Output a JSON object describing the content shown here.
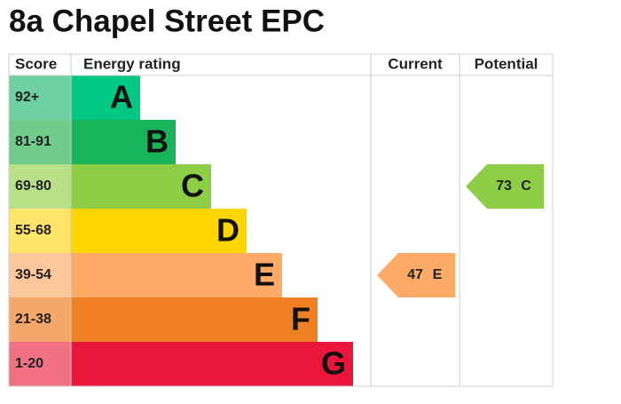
{
  "chart_data": {
    "type": "epc",
    "title": "8a Chapel Street EPC",
    "headers": [
      "Score",
      "Energy rating",
      "Current",
      "Potential"
    ],
    "bands": [
      {
        "range": "92+",
        "rating": "A",
        "color": "#00c781",
        "score_color": "#6fcfa0"
      },
      {
        "range": "81-91",
        "rating": "B",
        "color": "#19b459",
        "score_color": "#70cc8c"
      },
      {
        "range": "69-80",
        "rating": "C",
        "color": "#8dce46",
        "score_color": "#b7e088"
      },
      {
        "range": "55-68",
        "rating": "D",
        "color": "#ffd500",
        "score_color": "#ffe46a"
      },
      {
        "range": "39-54",
        "rating": "E",
        "color": "#fcaa65",
        "score_color": "#fdc79c"
      },
      {
        "range": "21-38",
        "rating": "F",
        "color": "#ef8023",
        "score_color": "#f4a76a"
      },
      {
        "range": "1-20",
        "rating": "G",
        "color": "#e9153b",
        "score_color": "#f17183"
      }
    ],
    "current": {
      "value": 47,
      "rating": "E"
    },
    "potential": {
      "value": 73,
      "rating": "C"
    }
  }
}
